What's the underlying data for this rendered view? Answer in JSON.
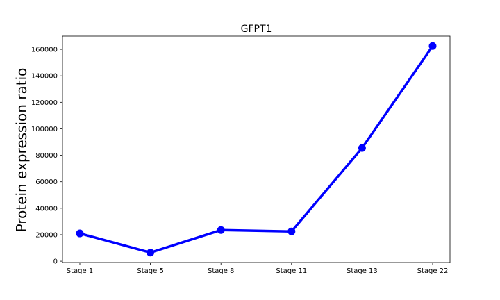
{
  "chart_data": {
    "type": "line",
    "title": "GFPT1",
    "xlabel": "",
    "ylabel": "Protein expression ratio",
    "categories": [
      "Stage 1",
      "Stage 5",
      "Stage 8",
      "Stage 11",
      "Stage 13",
      "Stage 22"
    ],
    "series": [
      {
        "values": [
          21000,
          6500,
          23500,
          22500,
          85500,
          162500
        ]
      }
    ],
    "ylim": [
      -1000,
      170000
    ],
    "yticks": [
      0,
      20000,
      40000,
      60000,
      80000,
      100000,
      120000,
      140000,
      160000
    ],
    "ytick_labels": [
      "0",
      "20000",
      "40000",
      "60000",
      "80000",
      "100000",
      "120000",
      "140000",
      "160000"
    ],
    "grid": false,
    "colors": {
      "line": "#0000ff",
      "marker": "#0000ff",
      "axes": "#000000"
    }
  }
}
